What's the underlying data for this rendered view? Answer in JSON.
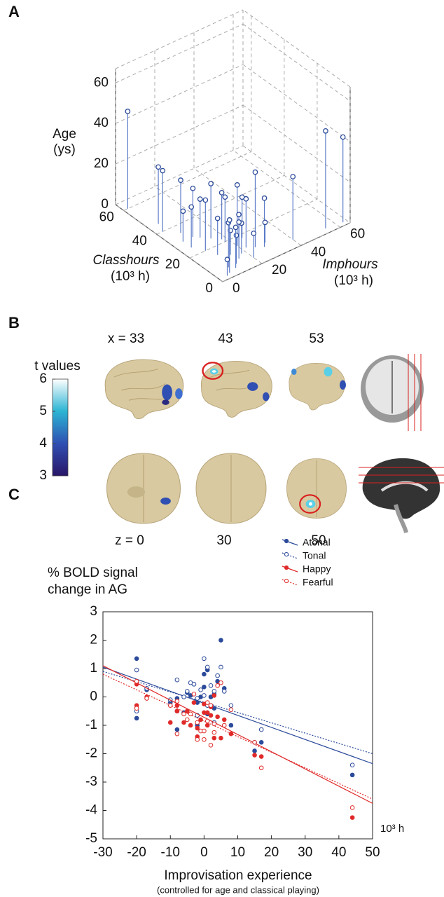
{
  "panel_labels": [
    "A",
    "B",
    "C"
  ],
  "brain_slices": {
    "x_labels": [
      "x = 33",
      "43",
      "53"
    ],
    "z_labels": [
      "z = 0",
      "30",
      "50"
    ]
  },
  "chart_data": [
    {
      "type": "scatter3d",
      "zlabel": [
        "Age",
        "(ys)"
      ],
      "xlabel": [
        "Classhours",
        "(10³ h)"
      ],
      "ylabel": [
        "Imphours",
        "(10³ h)"
      ],
      "xlim": [
        0,
        65
      ],
      "ylim": [
        0,
        65
      ],
      "zlim": [
        0,
        67
      ],
      "xticks": [
        0,
        20,
        40,
        60
      ],
      "yticks": [
        0,
        20,
        40,
        60
      ],
      "zticks": [
        0,
        20,
        40,
        60
      ],
      "color": "#2b4a9a",
      "stem_color": "#5b7bc8",
      "x": [
        60,
        45,
        40,
        35,
        30,
        28,
        25,
        22,
        20,
        15,
        12,
        10,
        8,
        5,
        3,
        2,
        18,
        14,
        10,
        8,
        12,
        6,
        4,
        15,
        20,
        25,
        30,
        10,
        6,
        3,
        2,
        5
      ],
      "y": [
        2,
        5,
        3,
        8,
        10,
        12,
        15,
        18,
        18,
        20,
        22,
        25,
        28,
        40,
        55,
        63,
        25,
        20,
        18,
        15,
        14,
        12,
        10,
        10,
        8,
        5,
        5,
        30,
        8,
        6,
        4,
        20
      ],
      "values": [
        48,
        28,
        30,
        26,
        24,
        19,
        27,
        23,
        22,
        30,
        24,
        37,
        24,
        31,
        48,
        42,
        20,
        16,
        15,
        18,
        12,
        14,
        20,
        18,
        25,
        20,
        15,
        10,
        22,
        26,
        8,
        12
      ]
    },
    {
      "type": "colorbar",
      "title": "t values",
      "ylim": [
        3,
        6
      ],
      "yticks": [
        3,
        4,
        5,
        6
      ],
      "colors": [
        "#2a1668",
        "#2f4fb2",
        "#2bb4d3",
        "#ffffff"
      ]
    },
    {
      "type": "scatter",
      "ylabel": [
        "% BOLD signal",
        "change in AG"
      ],
      "xlabel": "Improvisation experience",
      "subtitle": "(controlled for age and classical playing)",
      "unit_note": "10³ h",
      "xlim": [
        -30,
        50
      ],
      "ylim": [
        -5,
        3
      ],
      "xticks": [
        -30,
        -20,
        -10,
        0,
        10,
        20,
        30,
        40,
        50
      ],
      "yticks": [
        -5,
        -4,
        -3,
        -2,
        -1,
        0,
        1,
        2,
        3
      ],
      "fit_x": [
        -30,
        50
      ],
      "x": [
        -20,
        -20,
        -17,
        -8,
        -8,
        -5,
        -4,
        -3,
        -2,
        -1,
        0,
        1,
        1,
        2,
        3,
        4,
        5,
        -6,
        -2,
        0,
        3,
        8,
        15,
        17,
        44,
        -10,
        2,
        6
      ],
      "series": [
        {
          "name": "Atonal",
          "color": "#2b4a9a",
          "marker": "filled",
          "linestyle": "solid",
          "fit": [
            1.05,
            -2.35
          ],
          "values": [
            1.35,
            -0.75,
            0.25,
            -0.05,
            -1.15,
            0.15,
            0.05,
            0.45,
            -0.2,
            0.0,
            0.8,
            0.95,
            -0.6,
            0.0,
            0.1,
            0.55,
            2.0,
            -0.55,
            -1.0,
            0.35,
            -0.4,
            -1.0,
            -1.9,
            -1.6,
            -2.75,
            -0.2,
            -0.3,
            0.3
          ]
        },
        {
          "name": "Tonal",
          "color": "#2b4a9a",
          "marker": "open",
          "linestyle": "dotted",
          "fit": [
            0.9,
            -2.0
          ],
          "values": [
            0.95,
            -0.5,
            0.3,
            0.6,
            -0.5,
            0.2,
            0.5,
            0.45,
            -0.05,
            0.25,
            1.35,
            1.05,
            -0.3,
            -0.3,
            0.2,
            0.75,
            1.05,
            0.0,
            -0.65,
            0.05,
            -0.9,
            -0.3,
            -1.6,
            -1.15,
            -2.4,
            -0.1,
            0.4,
            0.2
          ]
        },
        {
          "name": "Happy",
          "color": "#e02a2a",
          "marker": "filled",
          "linestyle": "solid",
          "fit": [
            1.1,
            -3.75
          ],
          "values": [
            0.45,
            -0.3,
            0.0,
            -0.3,
            -0.5,
            -0.5,
            -1.0,
            -0.2,
            -1.4,
            -0.8,
            -0.25,
            -0.55,
            -1.0,
            -0.65,
            0.05,
            -0.7,
            -1.45,
            -0.9,
            -1.1,
            -0.55,
            -1.45,
            -1.3,
            -2.05,
            -2.1,
            -4.25,
            -0.9,
            -0.35,
            -0.8
          ]
        },
        {
          "name": "Fearful",
          "color": "#e02a2a",
          "marker": "open",
          "linestyle": "dotted",
          "fit": [
            0.8,
            -3.6
          ],
          "values": [
            0.55,
            -0.4,
            -0.05,
            -0.15,
            -1.3,
            -0.8,
            -0.6,
            0.1,
            -0.9,
            -1.2,
            -1.5,
            -0.85,
            -0.2,
            -1.7,
            -0.95,
            0.4,
            0.5,
            -0.6,
            -1.5,
            -1.2,
            -1.25,
            -0.45,
            -1.6,
            -2.5,
            -3.9,
            -0.3,
            -0.3,
            -1.0
          ]
        }
      ]
    }
  ]
}
